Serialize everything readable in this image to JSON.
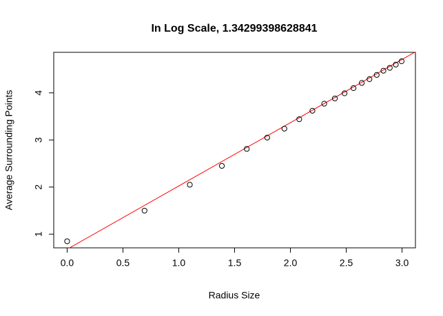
{
  "chart_data": {
    "type": "scatter",
    "title": "In Log Scale, 1.34299398628841",
    "x_label": "Radius Size",
    "y_label": "Average Surrounding Points",
    "x": [
      0,
      0.693,
      1.099,
      1.386,
      1.609,
      1.792,
      1.946,
      2.079,
      2.197,
      2.303,
      2.398,
      2.485,
      2.565,
      2.639,
      2.708,
      2.773,
      2.833,
      2.89,
      2.944,
      2.996
    ],
    "series": [
      {
        "color": "#000000",
        "values": [
          0.85,
          1.5,
          2.05,
          2.45,
          2.81,
          3.05,
          3.24,
          3.44,
          3.62,
          3.77,
          3.88,
          3.99,
          4.1,
          4.21,
          4.29,
          4.38,
          4.47,
          4.53,
          4.6,
          4.67
        ]
      }
    ],
    "fit": {
      "intercept": 0.68,
      "slope": 1.34299398628841,
      "color": "#ff0000"
    },
    "xlim": [
      -0.12,
      3.12
    ],
    "ylim": [
      0.71,
      4.86
    ],
    "xticks": [
      {
        "value": 0,
        "label": "0.0"
      },
      0.5,
      {
        "value": 1,
        "label": "1.0"
      },
      1.5,
      {
        "value": 2,
        "label": "2.0"
      },
      2.5,
      {
        "value": 3,
        "label": "3.0"
      }
    ],
    "yticks": [
      1,
      2,
      3,
      4
    ]
  }
}
